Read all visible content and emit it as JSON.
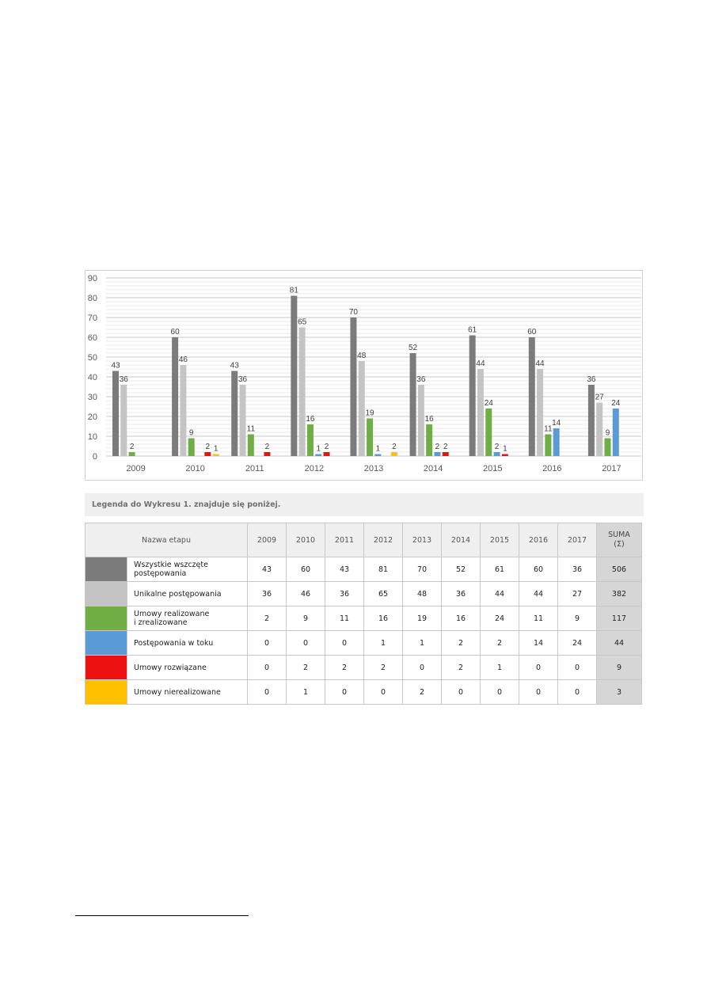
{
  "chart_data": {
    "type": "bar",
    "categories": [
      "2009",
      "2010",
      "2011",
      "2012",
      "2013",
      "2014",
      "2015",
      "2016",
      "2017"
    ],
    "ylim": [
      0,
      90
    ],
    "yticks": [
      0,
      10,
      20,
      30,
      40,
      50,
      60,
      70,
      80,
      90
    ],
    "grid": true,
    "series": [
      {
        "color": "#7b7b7b",
        "values": [
          43,
          60,
          43,
          81,
          70,
          52,
          61,
          60,
          36
        ]
      },
      {
        "color": "#c4c4c4",
        "values": [
          36,
          46,
          36,
          65,
          48,
          36,
          44,
          44,
          27
        ]
      },
      {
        "color": "#6fae45",
        "values": [
          2,
          9,
          11,
          16,
          19,
          16,
          24,
          11,
          9
        ]
      },
      {
        "color": "#5b9bd5",
        "values": [
          0,
          0,
          0,
          1,
          1,
          2,
          2,
          14,
          24
        ]
      },
      {
        "color": "#ee1111",
        "values": [
          0,
          2,
          2,
          2,
          0,
          2,
          1,
          0,
          0
        ]
      },
      {
        "color": "#ffc000",
        "values": [
          0,
          1,
          0,
          0,
          2,
          0,
          0,
          0,
          0
        ]
      }
    ]
  },
  "legend_caption": "Legenda do Wykresu 1. znajduje się poniżej.",
  "table": {
    "header_name": "Nazwa etapu",
    "years": [
      "2009",
      "2010",
      "2011",
      "2012",
      "2013",
      "2014",
      "2015",
      "2016",
      "2017"
    ],
    "sum_label": "SUMA",
    "sum_symbol": "(Σ)",
    "rows": [
      {
        "color": "#7b7b7b",
        "name_lines": [
          "Wszystkie wszczęte",
          "postępowania"
        ],
        "values": [
          "43",
          "60",
          "43",
          "81",
          "70",
          "52",
          "61",
          "60",
          "36"
        ],
        "sum": "506"
      },
      {
        "color": "#c4c4c4",
        "name_lines": [
          "Unikalne postępowania"
        ],
        "values": [
          "36",
          "46",
          "36",
          "65",
          "48",
          "36",
          "44",
          "44",
          "27"
        ],
        "sum": "382"
      },
      {
        "color": "#6fae45",
        "name_lines": [
          "Umowy realizowane",
          "i zrealizowane"
        ],
        "values": [
          "2",
          "9",
          "11",
          "16",
          "19",
          "16",
          "24",
          "11",
          "9"
        ],
        "sum": "117"
      },
      {
        "color": "#5b9bd5",
        "name_lines": [
          "Postępowania w toku"
        ],
        "values": [
          "0",
          "0",
          "0",
          "1",
          "1",
          "2",
          "2",
          "14",
          "24"
        ],
        "sum": "44"
      },
      {
        "color": "#ee1111",
        "name_lines": [
          "Umowy rozwiązane"
        ],
        "values": [
          "0",
          "2",
          "2",
          "2",
          "0",
          "2",
          "1",
          "0",
          "0"
        ],
        "sum": "9"
      },
      {
        "color": "#ffc000",
        "name_lines": [
          "Umowy nierealizowane"
        ],
        "values": [
          "0",
          "1",
          "0",
          "0",
          "2",
          "0",
          "0",
          "0",
          "0"
        ],
        "sum": "3"
      }
    ]
  }
}
